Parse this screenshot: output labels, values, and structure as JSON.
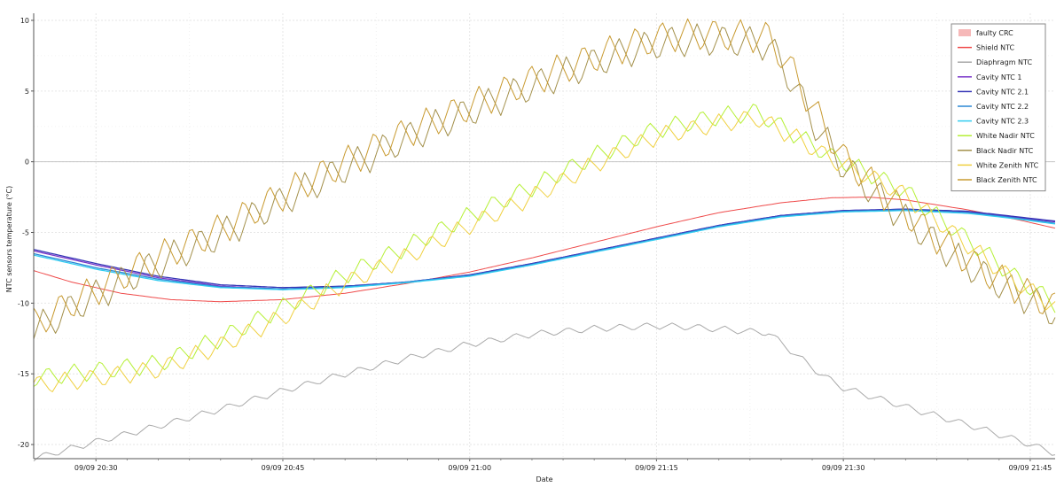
{
  "chart_data": {
    "type": "line",
    "title": "",
    "xlabel": "Date",
    "ylabel": "NTC sensors temperature (°C)",
    "x_unit": "minutes after 09/09 20:00",
    "xlim": [
      25.0,
      107.0
    ],
    "ylim": [
      -21,
      10.5
    ],
    "x_ticks": [
      {
        "x": 30,
        "label": "09/09 20:30"
      },
      {
        "x": 45,
        "label": "09/09 20:45"
      },
      {
        "x": 60,
        "label": "09/09 21:00"
      },
      {
        "x": 75,
        "label": "09/09 21:15"
      },
      {
        "x": 90,
        "label": "09/09 21:30"
      },
      {
        "x": 105,
        "label": "09/09 21:45"
      }
    ],
    "y_ticks": [
      10,
      5,
      0,
      -5,
      -10,
      -15,
      -20
    ],
    "grid": true,
    "legend_position": "top-right",
    "legend": [
      {
        "name": "faulty CRC",
        "kind": "area",
        "color": "#f6b8b8"
      },
      {
        "name": "Shield NTC",
        "color": "#ef4a4a"
      },
      {
        "name": "Diaphragm NTC",
        "color": "#a9a9a9"
      },
      {
        "name": "Cavity NTC 1",
        "color": "#7a35c9"
      },
      {
        "name": "Cavity NTC 2.1",
        "color": "#3535b5"
      },
      {
        "name": "Cavity NTC 2.2",
        "color": "#2a87d4"
      },
      {
        "name": "Cavity NTC 2.3",
        "color": "#33ccf0"
      },
      {
        "name": "White Nadir NTC",
        "color": "#b5f035"
      },
      {
        "name": "Black Nadir NTC",
        "color": "#a3904b"
      },
      {
        "name": "White Zenith NTC",
        "color": "#f0d040"
      },
      {
        "name": "Black Zenith NTC",
        "color": "#c89a30"
      }
    ],
    "series": [
      {
        "name": "Shield NTC",
        "color": "#ef4a4a",
        "oscillation": 0,
        "points": [
          [
            25,
            -7.7
          ],
          [
            28,
            -8.5
          ],
          [
            32,
            -9.3
          ],
          [
            36,
            -9.75
          ],
          [
            40,
            -9.9
          ],
          [
            45,
            -9.75
          ],
          [
            50,
            -9.3
          ],
          [
            55,
            -8.6
          ],
          [
            60,
            -7.8
          ],
          [
            65,
            -6.8
          ],
          [
            70,
            -5.7
          ],
          [
            75,
            -4.6
          ],
          [
            80,
            -3.6
          ],
          [
            85,
            -2.9
          ],
          [
            89,
            -2.55
          ],
          [
            92,
            -2.5
          ],
          [
            95,
            -2.7
          ],
          [
            100,
            -3.4
          ],
          [
            104,
            -4.1
          ],
          [
            107,
            -4.7
          ]
        ]
      },
      {
        "name": "Diaphragm NTC",
        "color": "#a9a9a9",
        "oscillation": 0.25,
        "points": [
          [
            25,
            -21.0
          ],
          [
            30,
            -19.8
          ],
          [
            35,
            -18.7
          ],
          [
            40,
            -17.5
          ],
          [
            45,
            -16.2
          ],
          [
            50,
            -15.0
          ],
          [
            55,
            -13.9
          ],
          [
            60,
            -12.9
          ],
          [
            65,
            -12.2
          ],
          [
            70,
            -11.8
          ],
          [
            75,
            -11.6
          ],
          [
            78,
            -11.7
          ],
          [
            81,
            -11.9
          ],
          [
            84,
            -12.1
          ],
          [
            86,
            -13.5
          ],
          [
            88,
            -14.9
          ],
          [
            90,
            -16.0
          ],
          [
            93,
            -16.8
          ],
          [
            96,
            -17.6
          ],
          [
            100,
            -18.6
          ],
          [
            104,
            -19.7
          ],
          [
            107,
            -20.6
          ]
        ]
      },
      {
        "name": "Cavity NTC 1",
        "color": "#7a35c9",
        "oscillation": 0,
        "points": [
          [
            25,
            -6.3
          ],
          [
            30,
            -7.3
          ],
          [
            35,
            -8.2
          ],
          [
            40,
            -8.8
          ],
          [
            45,
            -9.0
          ],
          [
            50,
            -8.8
          ],
          [
            55,
            -8.5
          ],
          [
            60,
            -8.0
          ],
          [
            65,
            -7.2
          ],
          [
            70,
            -6.3
          ],
          [
            75,
            -5.4
          ],
          [
            80,
            -4.5
          ],
          [
            85,
            -3.8
          ],
          [
            90,
            -3.45
          ],
          [
            95,
            -3.35
          ],
          [
            100,
            -3.55
          ],
          [
            104,
            -3.95
          ],
          [
            107,
            -4.25
          ]
        ]
      },
      {
        "name": "Cavity NTC 2.1",
        "color": "#3535b5",
        "oscillation": 0,
        "points": [
          [
            25,
            -6.2
          ],
          [
            30,
            -7.2
          ],
          [
            35,
            -8.1
          ],
          [
            40,
            -8.7
          ],
          [
            45,
            -8.9
          ],
          [
            50,
            -8.8
          ],
          [
            55,
            -8.5
          ],
          [
            60,
            -8.0
          ],
          [
            65,
            -7.2
          ],
          [
            70,
            -6.3
          ],
          [
            75,
            -5.4
          ],
          [
            80,
            -4.5
          ],
          [
            85,
            -3.8
          ],
          [
            90,
            -3.45
          ],
          [
            95,
            -3.35
          ],
          [
            100,
            -3.5
          ],
          [
            104,
            -3.9
          ],
          [
            107,
            -4.2
          ]
        ]
      },
      {
        "name": "Cavity NTC 2.2",
        "color": "#2a87d4",
        "oscillation": 0,
        "points": [
          [
            25,
            -6.5
          ],
          [
            30,
            -7.5
          ],
          [
            35,
            -8.3
          ],
          [
            40,
            -8.85
          ],
          [
            45,
            -9.0
          ],
          [
            50,
            -8.85
          ],
          [
            55,
            -8.5
          ],
          [
            60,
            -8.05
          ],
          [
            65,
            -7.25
          ],
          [
            70,
            -6.35
          ],
          [
            75,
            -5.45
          ],
          [
            80,
            -4.55
          ],
          [
            85,
            -3.85
          ],
          [
            90,
            -3.5
          ],
          [
            95,
            -3.4
          ],
          [
            100,
            -3.6
          ],
          [
            104,
            -4.0
          ],
          [
            107,
            -4.35
          ]
        ]
      },
      {
        "name": "Cavity NTC 2.3",
        "color": "#33ccf0",
        "oscillation": 0,
        "points": [
          [
            25,
            -6.6
          ],
          [
            30,
            -7.6
          ],
          [
            35,
            -8.4
          ],
          [
            40,
            -8.9
          ],
          [
            45,
            -9.05
          ],
          [
            50,
            -8.9
          ],
          [
            55,
            -8.55
          ],
          [
            60,
            -8.1
          ],
          [
            65,
            -7.3
          ],
          [
            70,
            -6.4
          ],
          [
            75,
            -5.5
          ],
          [
            80,
            -4.6
          ],
          [
            85,
            -3.9
          ],
          [
            90,
            -3.55
          ],
          [
            95,
            -3.45
          ],
          [
            100,
            -3.65
          ],
          [
            104,
            -4.05
          ],
          [
            107,
            -4.4
          ]
        ]
      },
      {
        "name": "White Nadir NTC",
        "color": "#b5f035",
        "oscillation": 0.7,
        "points": [
          [
            25,
            -15.3
          ],
          [
            30,
            -14.8
          ],
          [
            35,
            -14.3
          ],
          [
            40,
            -12.5
          ],
          [
            45,
            -10.3
          ],
          [
            50,
            -8.0
          ],
          [
            55,
            -6.0
          ],
          [
            60,
            -3.8
          ],
          [
            65,
            -1.8
          ],
          [
            70,
            0.4
          ],
          [
            75,
            2.3
          ],
          [
            80,
            3.2
          ],
          [
            83,
            3.5
          ],
          [
            86,
            2.0
          ],
          [
            89,
            0.4
          ],
          [
            92,
            -0.8
          ],
          [
            95,
            -2.1
          ],
          [
            98,
            -4.2
          ],
          [
            101,
            -6.2
          ],
          [
            104,
            -8.3
          ],
          [
            107,
            -10.0
          ]
        ]
      },
      {
        "name": "Black Nadir NTC",
        "color": "#a3904b",
        "oscillation": 1.2,
        "points": [
          [
            25,
            -12.0
          ],
          [
            28,
            -10.4
          ],
          [
            31,
            -9.0
          ],
          [
            34,
            -7.6
          ],
          [
            37,
            -6.4
          ],
          [
            40,
            -5.2
          ],
          [
            43,
            -3.7
          ],
          [
            46,
            -2.3
          ],
          [
            49,
            -0.9
          ],
          [
            52,
            0.4
          ],
          [
            55,
            1.7
          ],
          [
            58,
            2.8
          ],
          [
            61,
            3.9
          ],
          [
            64,
            5.0
          ],
          [
            67,
            6.0
          ],
          [
            70,
            7.0
          ],
          [
            73,
            7.9
          ],
          [
            76,
            8.5
          ],
          [
            79,
            8.6
          ],
          [
            82,
            8.5
          ],
          [
            84,
            8.3
          ],
          [
            86,
            5.5
          ],
          [
            88,
            2.2
          ],
          [
            90,
            -0.3
          ],
          [
            93,
            -2.6
          ],
          [
            96,
            -4.8
          ],
          [
            99,
            -6.8
          ],
          [
            102,
            -8.4
          ],
          [
            105,
            -9.8
          ],
          [
            107,
            -10.7
          ]
        ]
      },
      {
        "name": "White Zenith NTC",
        "color": "#f0d040",
        "oscillation": 0.7,
        "points": [
          [
            25,
            -15.8
          ],
          [
            30,
            -15.3
          ],
          [
            35,
            -14.7
          ],
          [
            40,
            -13.0
          ],
          [
            45,
            -11.0
          ],
          [
            50,
            -8.6
          ],
          [
            55,
            -6.7
          ],
          [
            60,
            -4.5
          ],
          [
            65,
            -2.5
          ],
          [
            70,
            -0.2
          ],
          [
            75,
            1.8
          ],
          [
            80,
            2.7
          ],
          [
            83,
            3.1
          ],
          [
            86,
            1.8
          ],
          [
            89,
            0.2
          ],
          [
            92,
            -1.0
          ],
          [
            95,
            -2.4
          ],
          [
            98,
            -4.5
          ],
          [
            101,
            -6.6
          ],
          [
            104,
            -8.6
          ],
          [
            107,
            -10.2
          ]
        ]
      },
      {
        "name": "Black Zenith NTC",
        "color": "#c89a30",
        "oscillation": 1.2,
        "points": [
          [
            25,
            -11.5
          ],
          [
            28,
            -10.0
          ],
          [
            31,
            -8.6
          ],
          [
            34,
            -7.2
          ],
          [
            37,
            -6.0
          ],
          [
            40,
            -4.8
          ],
          [
            43,
            -3.3
          ],
          [
            46,
            -1.9
          ],
          [
            49,
            -0.5
          ],
          [
            52,
            0.8
          ],
          [
            55,
            2.1
          ],
          [
            58,
            3.2
          ],
          [
            61,
            4.3
          ],
          [
            64,
            5.4
          ],
          [
            67,
            6.4
          ],
          [
            70,
            7.4
          ],
          [
            73,
            8.3
          ],
          [
            76,
            8.9
          ],
          [
            79,
            9.0
          ],
          [
            82,
            8.9
          ],
          [
            84,
            8.8
          ],
          [
            86,
            6.3
          ],
          [
            88,
            3.1
          ],
          [
            90,
            0.3
          ],
          [
            93,
            -2.1
          ],
          [
            96,
            -4.4
          ],
          [
            99,
            -6.4
          ],
          [
            102,
            -8.1
          ],
          [
            105,
            -9.4
          ],
          [
            107,
            -10.3
          ]
        ]
      }
    ]
  }
}
